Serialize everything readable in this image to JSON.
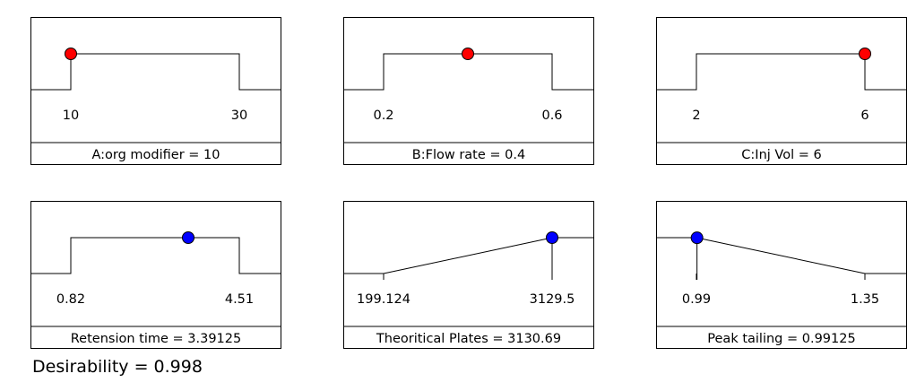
{
  "chart_data": [
    {
      "type": "line",
      "name": "factor-A",
      "kind": "factor",
      "title": "A:org modifier = 10",
      "low_label": "10",
      "high_label": "30",
      "low": 10,
      "high": 30,
      "value": 10,
      "shape": "plateau",
      "dot_color": "#ff0000"
    },
    {
      "type": "line",
      "name": "factor-B",
      "kind": "factor",
      "title": "B:Flow rate = 0.4",
      "low_label": "0.2",
      "high_label": "0.6",
      "low": 0.2,
      "high": 0.6,
      "value": 0.4,
      "shape": "plateau",
      "dot_color": "#ff0000"
    },
    {
      "type": "line",
      "name": "factor-C",
      "kind": "factor",
      "title": "C:Inj Vol = 6",
      "low_label": "2",
      "high_label": "6",
      "low": 2,
      "high": 6,
      "value": 6,
      "shape": "plateau",
      "dot_color": "#ff0000"
    },
    {
      "type": "line",
      "name": "response-retention",
      "kind": "response",
      "title": "Retension time = 3.39125",
      "low_label": "0.82",
      "high_label": "4.51",
      "low": 0.82,
      "high": 4.51,
      "value": 3.39125,
      "shape": "plateau",
      "dot_color": "#0000ff"
    },
    {
      "type": "line",
      "name": "response-plates",
      "kind": "response",
      "title": "Theoritical Plates = 3130.69",
      "low_label": "199.124",
      "high_label": "3129.5",
      "low": 199.124,
      "high": 3129.5,
      "value": 3130.69,
      "shape": "maximize",
      "dot_color": "#0000ff"
    },
    {
      "type": "line",
      "name": "response-tailing",
      "kind": "response",
      "title": "Peak tailing = 0.99125",
      "low_label": "0.99",
      "high_label": "1.35",
      "low": 0.99,
      "high": 1.35,
      "value": 0.99125,
      "shape": "minimize",
      "dot_color": "#0000ff"
    }
  ],
  "desirability_text": "Desirability = 0.998"
}
